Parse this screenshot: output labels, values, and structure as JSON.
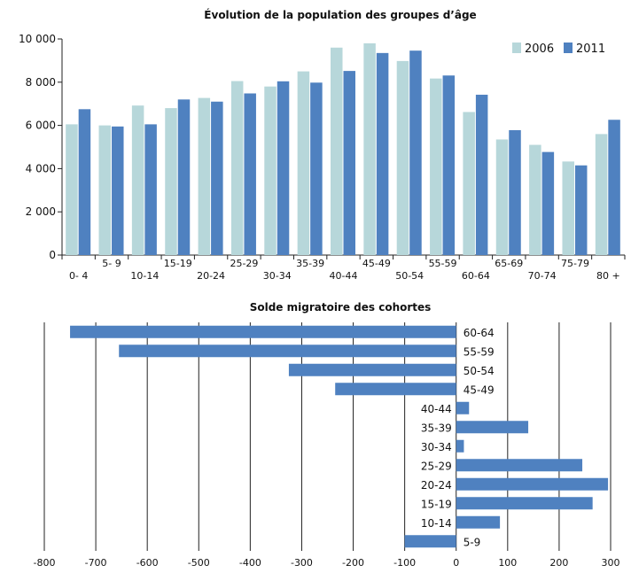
{
  "chart_data": [
    {
      "type": "bar",
      "title": "Évolution de la population des groupes d’âge",
      "categories": [
        "0-4",
        "5-9",
        "10-14",
        "15-19",
        "20-24",
        "25-29",
        "30-34",
        "35-39",
        "40-44",
        "45-49",
        "50-54",
        "55-59",
        "60-64",
        "65-69",
        "70-74",
        "75-79",
        "80 +"
      ],
      "series": [
        {
          "name": "2006",
          "color": "#b7d7da",
          "values": [
            6050,
            6000,
            6920,
            6800,
            7270,
            8050,
            7800,
            8500,
            9600,
            9800,
            8980,
            8170,
            6620,
            5350,
            5100,
            4330,
            5600
          ]
        },
        {
          "name": "2011",
          "color": "#4f81c0",
          "values": [
            6750,
            5950,
            6050,
            7200,
            7100,
            7480,
            8040,
            7980,
            8520,
            9350,
            9460,
            8310,
            7420,
            5780,
            4770,
            4150,
            6260
          ]
        }
      ],
      "ylim": [
        0,
        10000
      ],
      "yticks": [
        "0",
        "2 000",
        "4 000",
        "6 000",
        "8 000",
        "10 000"
      ],
      "xtick_labels": [
        "0- 4",
        "5- 9",
        "10-14",
        "15-19",
        "20-24",
        "25-29",
        "30-34",
        "35-39",
        "40-44",
        "45-49",
        "50-54",
        "55-59",
        "60-64",
        "65-69",
        "70-74",
        "75-79",
        "80 +"
      ],
      "legend": "top-right",
      "grid": false
    },
    {
      "type": "bar",
      "orientation": "horizontal",
      "title": "Solde migratoire des cohortes",
      "categories": [
        "60-64",
        "55-59",
        "50-54",
        "45-49",
        "40-44",
        "35-39",
        "30-34",
        "25-29",
        "20-24",
        "15-19",
        "10-14",
        "5-9"
      ],
      "values": [
        -750,
        -655,
        -325,
        -235,
        25,
        140,
        15,
        245,
        295,
        265,
        85,
        -100
      ],
      "color": "#4f81c0",
      "xlim": [
        -800,
        300
      ],
      "xticks": [
        "-800",
        "-700",
        "-600",
        "-500",
        "-400",
        "-300",
        "-200",
        "-100",
        "0",
        "100",
        "200",
        "300"
      ],
      "grid": true
    }
  ]
}
